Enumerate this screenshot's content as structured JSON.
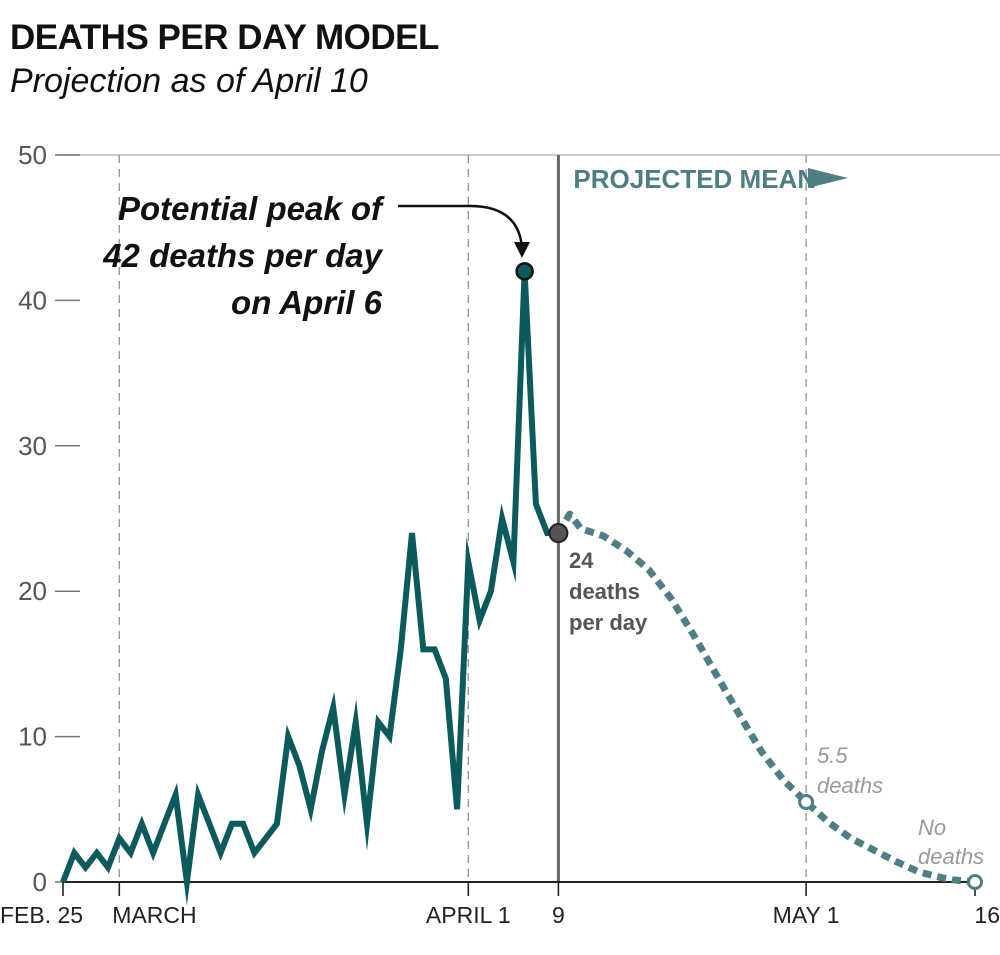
{
  "title": "DEATHS PER DAY MODEL",
  "subtitle": "Projection as of April 10",
  "colors": {
    "actual": "#0d5a5c",
    "projected": "#4f7f83",
    "grid": "#bbbbbb",
    "today_line": "#666666",
    "muted": "#999999"
  },
  "chart_data": {
    "type": "line",
    "title": "DEATHS PER DAY MODEL",
    "subtitle": "Projection as of April 10",
    "xlabel": "",
    "ylabel": "",
    "ylim": [
      0,
      50
    ],
    "yticks": [
      0,
      10,
      20,
      30,
      40,
      50
    ],
    "xlim": [
      "2020-02-25",
      "2020-05-16"
    ],
    "xticks": [
      {
        "date": "2020-02-25",
        "label": "FEB. 25"
      },
      {
        "date": "2020-03-01",
        "label": "MARCH"
      },
      {
        "date": "2020-04-01",
        "label": "APRIL 1"
      },
      {
        "date": "2020-04-09",
        "label": "9"
      },
      {
        "date": "2020-05-01",
        "label": "MAY 1"
      },
      {
        "date": "2020-05-16",
        "label": "16"
      }
    ],
    "grid": "vertical dashed at month starts, horizontal at 50",
    "series": [
      {
        "style": "solid",
        "x": [
          "2020-02-25",
          "2020-02-26",
          "2020-02-27",
          "2020-02-28",
          "2020-02-29",
          "2020-03-01",
          "2020-03-02",
          "2020-03-03",
          "2020-03-04",
          "2020-03-05",
          "2020-03-06",
          "2020-03-07",
          "2020-03-08",
          "2020-03-09",
          "2020-03-10",
          "2020-03-11",
          "2020-03-12",
          "2020-03-13",
          "2020-03-14",
          "2020-03-15",
          "2020-03-16",
          "2020-03-17",
          "2020-03-18",
          "2020-03-19",
          "2020-03-20",
          "2020-03-21",
          "2020-03-22",
          "2020-03-23",
          "2020-03-24",
          "2020-03-25",
          "2020-03-26",
          "2020-03-27",
          "2020-03-28",
          "2020-03-29",
          "2020-03-30",
          "2020-03-31",
          "2020-04-01",
          "2020-04-02",
          "2020-04-03",
          "2020-04-04",
          "2020-04-05",
          "2020-04-06",
          "2020-04-07",
          "2020-04-08",
          "2020-04-09"
        ],
        "y": [
          0,
          2,
          1,
          2,
          1,
          3,
          2,
          4,
          2,
          4,
          6,
          0,
          6,
          4,
          2,
          4,
          4,
          2,
          3,
          4,
          10,
          8,
          5,
          9,
          12,
          6,
          11,
          4,
          11,
          10,
          16,
          24,
          16,
          16,
          14,
          5,
          22,
          18,
          20,
          25,
          22,
          42,
          26,
          24,
          24
        ]
      },
      {
        "style": "dashed",
        "x": [
          "2020-04-09",
          "2020-04-10",
          "2020-04-11",
          "2020-04-13",
          "2020-04-15",
          "2020-04-17",
          "2020-04-19",
          "2020-04-21",
          "2020-04-23",
          "2020-04-25",
          "2020-04-27",
          "2020-04-29",
          "2020-05-01",
          "2020-05-03",
          "2020-05-05",
          "2020-05-07",
          "2020-05-09",
          "2020-05-11",
          "2020-05-13",
          "2020-05-14",
          "2020-05-16"
        ],
        "y": [
          24,
          25.3,
          24.3,
          23.8,
          22.8,
          21.5,
          19.5,
          17,
          14.3,
          11.6,
          9,
          7,
          5.5,
          4.1,
          3,
          2.2,
          1.4,
          0.7,
          0.3,
          0.15,
          0
        ]
      }
    ],
    "annotations": [
      {
        "x": "2020-04-06",
        "y": 42,
        "text_lines": [
          "Potential peak of",
          "42 deaths per day",
          "on April 6"
        ]
      },
      {
        "x": "2020-04-09",
        "y": 24,
        "text_lines": [
          "24",
          "deaths",
          "per day"
        ]
      },
      {
        "x": "2020-05-01",
        "y": 5.5,
        "text_lines": [
          "5.5",
          "deaths"
        ]
      },
      {
        "x": "2020-05-16",
        "y": 0,
        "text_lines": [
          "No",
          "deaths"
        ]
      }
    ],
    "projection_label": "PROJECTED MEAN"
  }
}
